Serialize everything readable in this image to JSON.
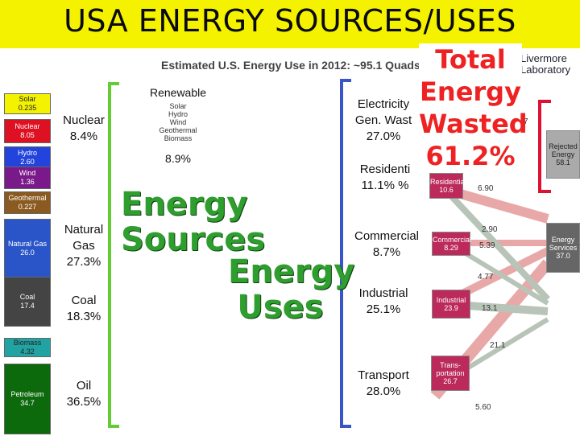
{
  "banner": {
    "title": "USA ENERGY SOURCES/USES"
  },
  "diagram": {
    "title": "Estimated U.S. Energy Use in 2012: ~95.1 Quads",
    "org_text": "Livermore\nLaboratory",
    "sources": [
      {
        "name": "Solar",
        "value": "0.235",
        "color": "#f4f200",
        "text_color": "#222"
      },
      {
        "name": "Nuclear",
        "value": "8.05",
        "color": "#dd1122",
        "text_color": "#fff"
      },
      {
        "name": "Hydro",
        "value": "2.60",
        "color": "#2244dd",
        "text_color": "#fff"
      },
      {
        "name": "Wind",
        "value": "1.36",
        "color": "#7a1a8a",
        "text_color": "#fff"
      },
      {
        "name": "Geothermal",
        "value": "0.227",
        "color": "#8a5a20",
        "text_color": "#fff"
      },
      {
        "name": "Natural Gas",
        "value": "26.0",
        "color": "#2a55c8",
        "text_color": "#fff"
      },
      {
        "name": "Coal",
        "value": "17.4",
        "color": "#444444",
        "text_color": "#fff"
      },
      {
        "name": "Biomass",
        "value": "4.32",
        "color": "#22a3a3",
        "text_color": "#222"
      },
      {
        "name": "Petroleum",
        "value": "34.7",
        "color": "#0c6a0c",
        "text_color": "#fff"
      }
    ],
    "uses": [
      {
        "name": "Residential",
        "value": "10.6"
      },
      {
        "name": "Commercial",
        "value": "8.29"
      },
      {
        "name": "Industrial",
        "value": "23.9"
      },
      {
        "name": "Trans-\nportation",
        "value": "26.7"
      }
    ],
    "rejected": {
      "name": "Rejected\nEnergy",
      "value": "58.1"
    },
    "services": {
      "name": "Energy\nServices",
      "value": "37.0"
    },
    "flow_values": [
      "6.90",
      "2.90",
      "5.39",
      "4.77",
      "13.1",
      "21.1",
      "5.60",
      "7"
    ]
  },
  "source_labels": {
    "renewable_heading": "Renewable",
    "renewable_list": "Solar\nHydro\nWind\nGeothermal\nBiomass",
    "renewable_pct": "8.9%",
    "nuclear": "Nuclear\n8.4%",
    "natural_gas": "Natural\nGas\n27.3%",
    "coal": "Coal\n18.3%",
    "oil": "Oil\n36.5%",
    "big1": "Energy\nSources",
    "big2": "Energy\nUses"
  },
  "use_labels": {
    "electricity": "Electricity\nGen. Wast\n27.0%",
    "residential": "Residenti\n11.1% %",
    "commercial": "Commercial\n8.7%",
    "industrial": "Industrial\n25.1%",
    "transport": "Transport\n28.0%"
  },
  "wasted": {
    "text": "Total\nEnergy\nWasted\n61.2%"
  },
  "colors": {
    "bracket_green": "#66cc33",
    "bracket_blue": "#3a55c8",
    "bracket_red": "#dd1133",
    "banner": "#f5f200"
  }
}
